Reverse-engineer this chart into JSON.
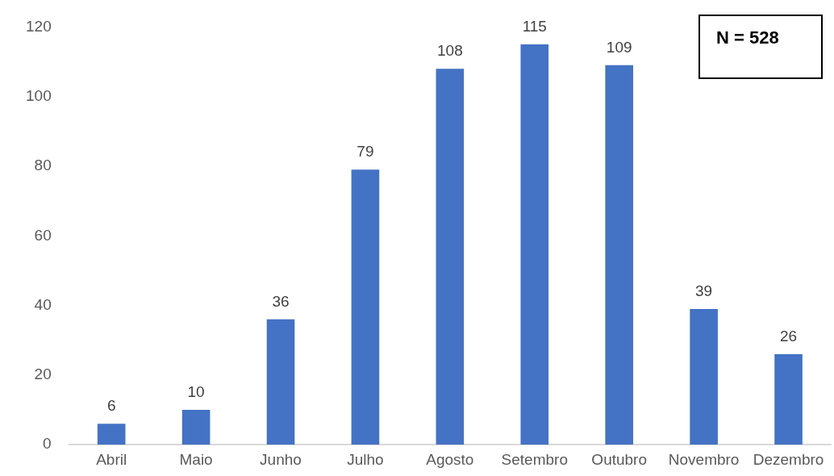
{
  "chart_data": {
    "type": "bar",
    "categories": [
      "Abril",
      "Maio",
      "Junho",
      "Julho",
      "Agosto",
      "Setembro",
      "Outubro",
      "Novembro",
      "Dezembro"
    ],
    "values": [
      6,
      10,
      36,
      79,
      108,
      115,
      109,
      39,
      26
    ],
    "color": "#4472c4",
    "ylim": [
      0,
      120
    ],
    "yticks": [
      0,
      20,
      40,
      60,
      80,
      100,
      120
    ],
    "grid": false,
    "legend": false,
    "data_labels": true,
    "annotations": [
      "N = 528"
    ]
  }
}
